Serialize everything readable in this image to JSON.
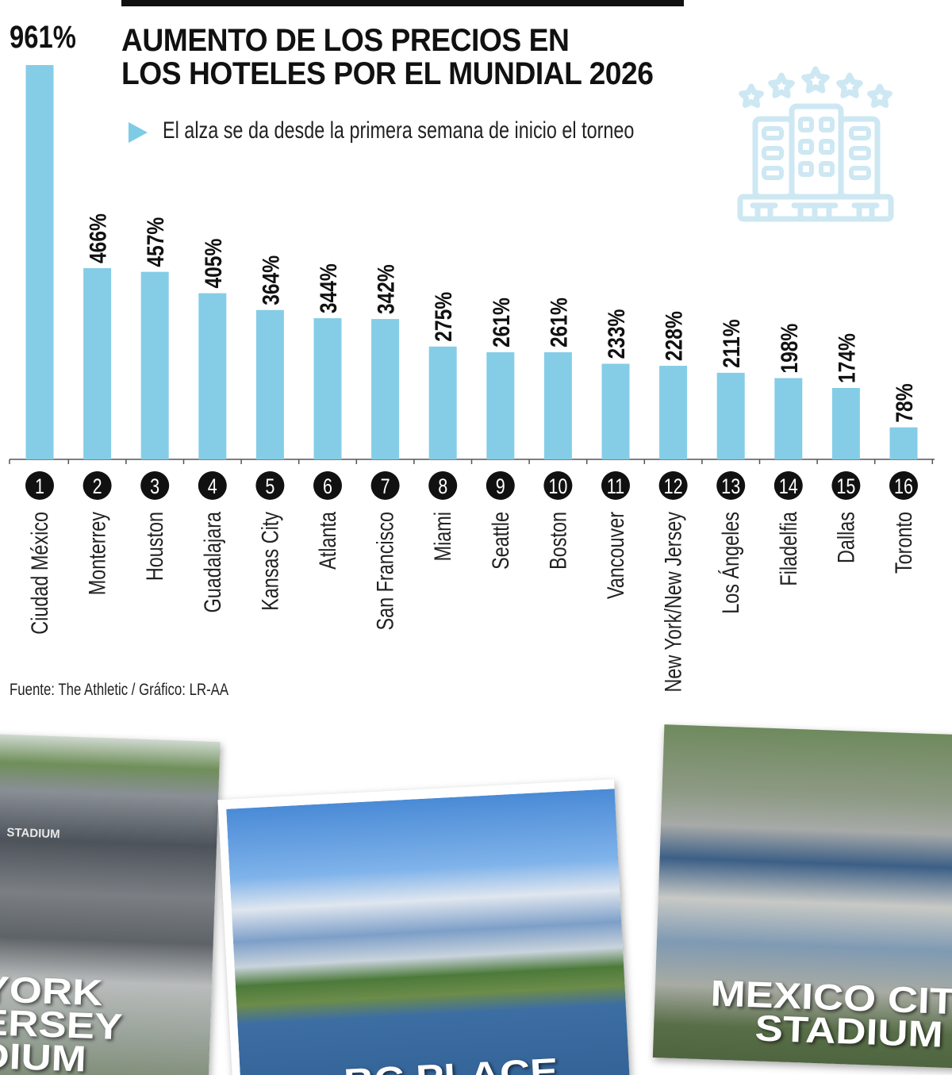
{
  "header": {
    "title_line1": "AUMENTO DE LOS PRECIOS EN",
    "title_line2": "LOS HOTELES POR EL MUNDIAL 2026",
    "subtitle": "El alza se da desde la primera semana de inicio el torneo",
    "icon": "hotel-five-stars-icon"
  },
  "chart_data": {
    "type": "bar",
    "title": "AUMENTO DE LOS PRECIOS EN LOS HOTELES POR EL MUNDIAL 2026",
    "categories": [
      "Ciudad México",
      "Monterrey",
      "Houston",
      "Guadalajara",
      "Kansas City",
      "Atlanta",
      "San Francisco",
      "Miami",
      "Seattle",
      "Boston",
      "Vancouver",
      "New York/New Jersey",
      "Los Ángeles",
      "Filadelfia",
      "Dallas",
      "Toronto"
    ],
    "ranks": [
      "1",
      "2",
      "3",
      "4",
      "5",
      "6",
      "7",
      "8",
      "9",
      "10",
      "11",
      "12",
      "13",
      "14",
      "15",
      "16"
    ],
    "values": [
      961,
      466,
      457,
      405,
      364,
      344,
      342,
      275,
      261,
      261,
      233,
      228,
      211,
      198,
      174,
      78
    ],
    "labels": [
      "961%",
      "466%",
      "457%",
      "405%",
      "364%",
      "344%",
      "342%",
      "275%",
      "261%",
      "261%",
      "233%",
      "228%",
      "211%",
      "198%",
      "174%",
      "78%"
    ],
    "unit": "%",
    "ylim": [
      0,
      961
    ],
    "grid": false,
    "bar_color": "#85cde6",
    "text_color": "#111111"
  },
  "footer": {
    "source": "Fuente: The Athletic / Gráfico: LR-AA"
  },
  "photos": [
    {
      "caption_lines": [
        "YORK",
        "ERSEY",
        "DIUM"
      ],
      "sign": "STADIUM"
    },
    {
      "caption_lines": [
        "BC PLACE"
      ]
    },
    {
      "caption_lines": [
        "MEXICO CITY",
        "STADIUM"
      ]
    }
  ]
}
